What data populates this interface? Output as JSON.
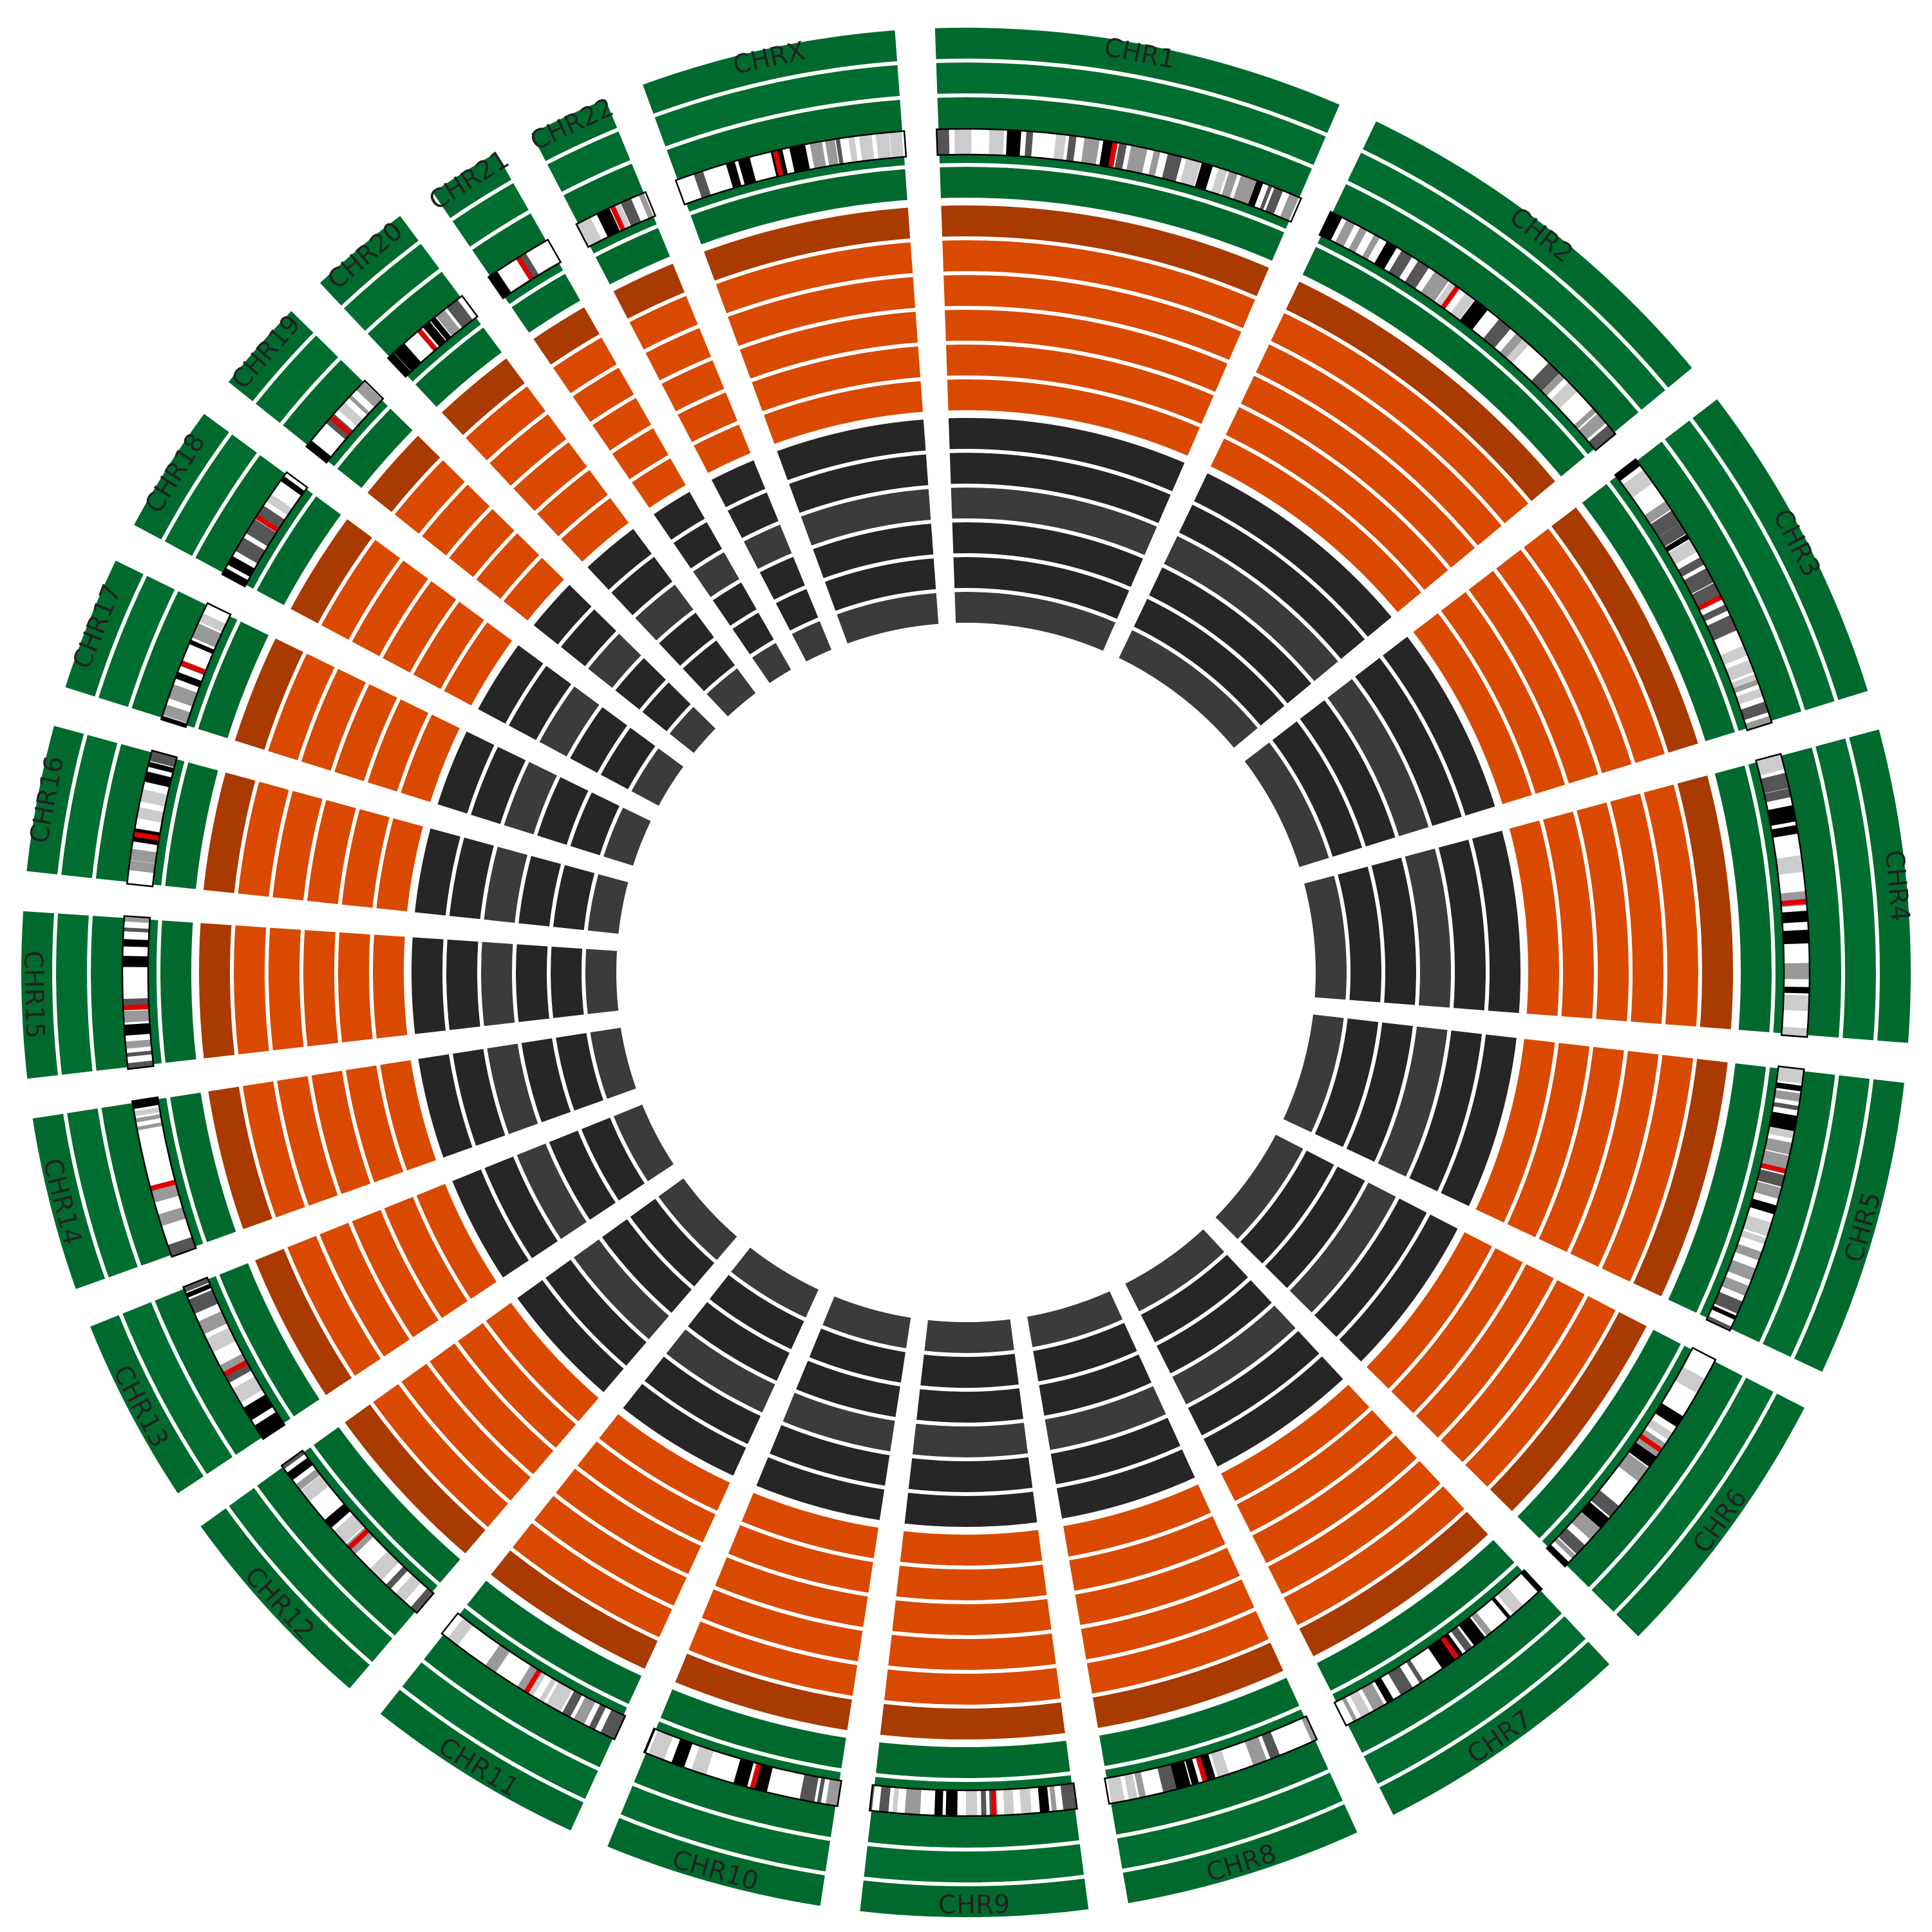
{
  "chart_data": {
    "type": "circos",
    "title": "",
    "chromosomes": [
      {
        "name": "CHR1",
        "label": "CHR1",
        "length": 248.9
      },
      {
        "name": "CHR2",
        "label": "CHR2",
        "length": 242.2
      },
      {
        "name": "CHR3",
        "label": "CHR3",
        "length": 198.3
      },
      {
        "name": "CHR4",
        "label": "CHR4",
        "length": 190.2
      },
      {
        "name": "CHR5",
        "label": "CHR5",
        "length": 181.5
      },
      {
        "name": "CHR6",
        "label": "CHR6",
        "length": 170.8
      },
      {
        "name": "CHR7",
        "label": "CHR7",
        "length": 159.3
      },
      {
        "name": "CHR8",
        "label": "CHR8",
        "length": 145.1
      },
      {
        "name": "CHR9",
        "label": "CHR9",
        "length": 138.4
      },
      {
        "name": "CHR10",
        "label": "CHR10",
        "length": 133.8
      },
      {
        "name": "CHR11",
        "label": "CHR11",
        "length": 135.1
      },
      {
        "name": "CHR12",
        "label": "CHR12",
        "length": 133.3
      },
      {
        "name": "CHR13",
        "label": "CHR13",
        "length": 114.4
      },
      {
        "name": "CHR14",
        "label": "CHR14",
        "length": 107.0
      },
      {
        "name": "CHR15",
        "label": "CHR15",
        "length": 102.0
      },
      {
        "name": "CHR16",
        "label": "CHR16",
        "length": 90.3
      },
      {
        "name": "CHR17",
        "label": "CHR17",
        "length": 83.3
      },
      {
        "name": "CHR18",
        "label": "CHR18",
        "length": 80.4
      },
      {
        "name": "CHR19",
        "label": "CHR19",
        "length": 58.6
      },
      {
        "name": "CHR20",
        "label": "CHR20",
        "length": 64.4
      },
      {
        "name": "CHR21",
        "label": "CHR21",
        "length": 46.7
      },
      {
        "name": "CHR22",
        "label": "CHR22",
        "length": 50.8
      },
      {
        "name": "CHRX",
        "label": "CHRX",
        "length": 156.0
      }
    ],
    "ring_groups": [
      {
        "color": "#006a2e",
        "rings": 5
      },
      {
        "color": "#d94a00",
        "rings": 6
      },
      {
        "color": "#262626",
        "rings": 6
      }
    ],
    "centromere_color": "#e00000",
    "ideogram_band_colors": [
      "#000000",
      "#555555",
      "#999999",
      "#cccccc",
      "#ffffff"
    ]
  }
}
